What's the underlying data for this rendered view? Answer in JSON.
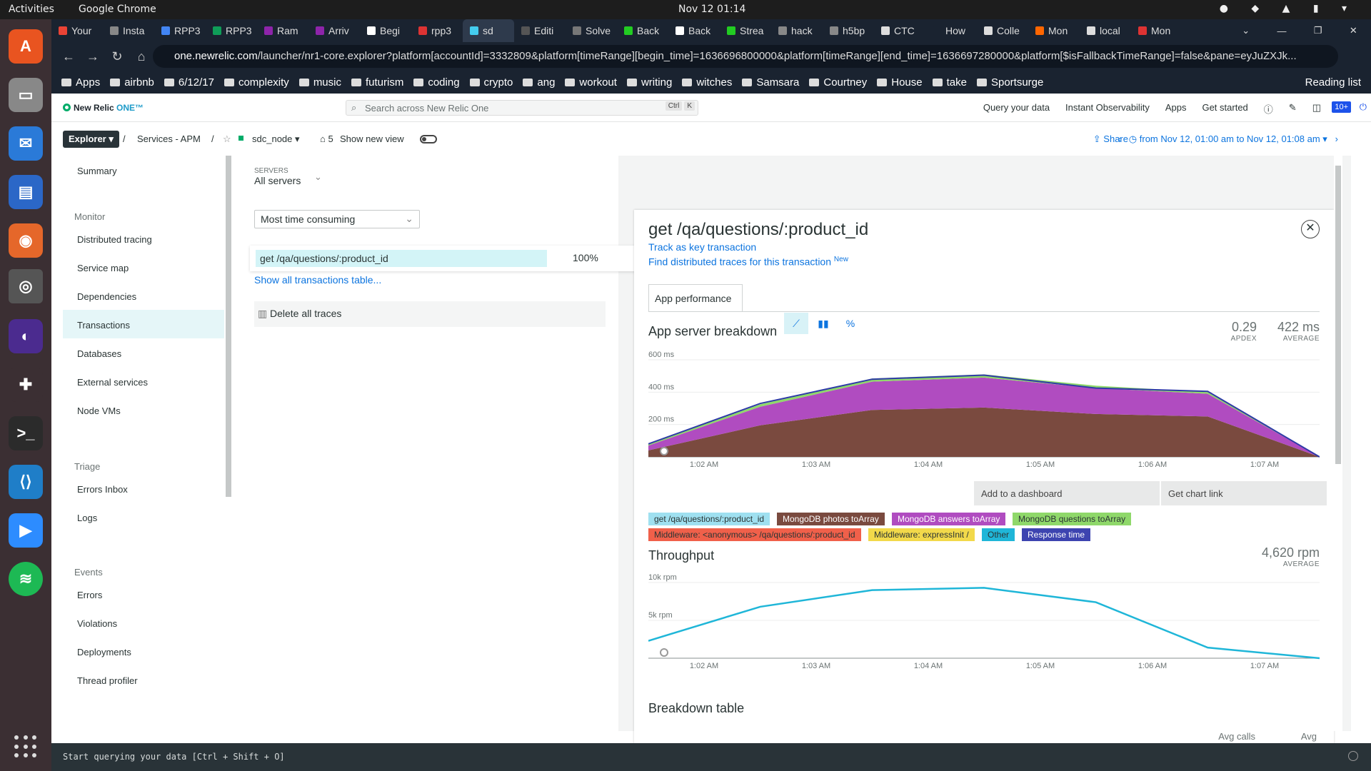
{
  "os": {
    "activities": "Activities",
    "browser_name": "Google Chrome",
    "clock": "Nov 12  01:14"
  },
  "browser": {
    "tabs": [
      "Your",
      "Insta",
      "RPP3",
      "RPP3",
      "Ram",
      "Arriv",
      "Begi",
      "rpp3",
      "sd",
      "Editi",
      "Solve",
      "Back",
      "Back",
      "Strea",
      "hack",
      "h5bp",
      "CTC",
      "How",
      "Colle",
      "Mon",
      "local",
      "Mon"
    ],
    "url_host": "one.newrelic.com",
    "url_path": "/launcher/nr1-core.explorer?platform[accountId]=3332809&platform[timeRange][begin_time]=1636696800000&platform[timeRange][end_time]=1636697280000&platform[$isFallbackTimeRange]=false&pane=eyJuZXJk...",
    "bookmarks": [
      "Apps",
      "airbnb",
      "6/12/17",
      "complexity",
      "music",
      "futurism",
      "coding",
      "crypto",
      "ang",
      "workout",
      "writing",
      "witches",
      "Samsara",
      "Courtney",
      "House",
      "take",
      "Sportsurge"
    ],
    "reading_list": "Reading list"
  },
  "nr": {
    "logo": "New Relic",
    "logo_one": "ONE™",
    "search_placeholder": "Search across New Relic One",
    "search_key1": "Ctrl",
    "search_key2": "K",
    "header_links": [
      "Query your data",
      "Instant Observability",
      "Apps",
      "Get started"
    ],
    "notif_badge": "10+",
    "explorer": "Explorer",
    "crumb_sep": "/",
    "crumb_services": "Services - APM",
    "entity": "sdc_node",
    "tags_count": "5",
    "show_new_view": "Show new view",
    "share": "Share",
    "time_range": "from Nov 12, 01:00 am to Nov 12, 01:08 am"
  },
  "sidebar": {
    "summary": "Summary",
    "monitor": "Monitor",
    "monitor_items": [
      "Distributed tracing",
      "Service map",
      "Dependencies",
      "Transactions",
      "Databases",
      "External services",
      "Node VMs"
    ],
    "triage": "Triage",
    "triage_items": [
      "Errors Inbox",
      "Logs"
    ],
    "events": "Events",
    "events_items": [
      "Errors",
      "Violations",
      "Deployments",
      "Thread profiler"
    ]
  },
  "left": {
    "servers_label": "SERVERS",
    "servers_value": "All servers",
    "sort": "Most time consuming",
    "tx_name": "get /qa/questions/:product_id",
    "tx_pct": "100%",
    "show_all": "Show all transactions table...",
    "delete": "Delete all traces"
  },
  "panel": {
    "title": "get /qa/questions/:product_id",
    "track": "Track as key transaction",
    "find": "Find distributed traces for this transaction",
    "new": "New",
    "tab": "App performance",
    "breakdown_title": "App server breakdown",
    "apdex_value": "0.29",
    "apdex_label": "APDEX",
    "avg_value": "422 ms",
    "avg_label": "AVERAGE",
    "add_dashboard": "Add to a dashboard",
    "chart_link": "Get chart link",
    "throughput_title": "Throughput",
    "throughput_value": "4,620 rpm",
    "throughput_label": "AVERAGE",
    "breakdown_table": "Breakdown table",
    "col_avg_calls": "Avg calls",
    "col_avg": "Avg",
    "icon_pct": "%"
  },
  "chart_data": [
    {
      "type": "area",
      "title": "App server breakdown",
      "x": [
        "1:01:30 AM",
        "1:02:30 AM",
        "1:03:30 AM",
        "1:04:30 AM",
        "1:05:30 AM",
        "1:06:30 AM",
        "1:07:30 AM"
      ],
      "xticks": [
        "1:02 AM",
        "1:03 AM",
        "1:04 AM",
        "1:05 AM",
        "1:06 AM",
        "1:07 AM"
      ],
      "yticks": [
        "600 ms",
        "400 ms",
        "200 ms"
      ],
      "ylim": [
        0,
        600
      ],
      "series": [
        {
          "name": "MongoDB photos toArray",
          "color": "#7a4a3f",
          "values": [
            40,
            195,
            290,
            305,
            265,
            250,
            0
          ]
        },
        {
          "name": "MongoDB answers toArray",
          "color": "#b04cc0",
          "values": [
            30,
            115,
            175,
            185,
            160,
            140,
            0
          ]
        },
        {
          "name": "MongoDB questions toArray",
          "color": "#8fd86a",
          "values": [
            10,
            15,
            20,
            20,
            15,
            10,
            0
          ]
        },
        {
          "name": "Response time",
          "color": "#2e3aa8",
          "values": [
            80,
            330,
            480,
            505,
            425,
            405,
            0
          ]
        }
      ],
      "legend": [
        {
          "label": "get /qa/questions/:product_id",
          "color": "#9fe0f0"
        },
        {
          "label": "MongoDB photos toArray",
          "color": "#7a4a3f"
        },
        {
          "label": "MongoDB answers toArray",
          "color": "#b04cc0"
        },
        {
          "label": "MongoDB questions toArray",
          "color": "#8fd86a"
        },
        {
          "label": "Middleware: <anonymous> /qa/questions/:product_id",
          "color": "#f0604a"
        },
        {
          "label": "Middleware: expressInit /",
          "color": "#f2d94a"
        },
        {
          "label": "Other",
          "color": "#1fb6d8"
        },
        {
          "label": "Response time",
          "color": "#3d44b0"
        }
      ]
    },
    {
      "type": "line",
      "title": "Throughput",
      "x": [
        "1:01:30 AM",
        "1:02:30 AM",
        "1:03:30 AM",
        "1:04:30 AM",
        "1:05:30 AM",
        "1:06:30 AM",
        "1:07:30 AM"
      ],
      "xticks": [
        "1:02 AM",
        "1:03 AM",
        "1:04 AM",
        "1:05 AM",
        "1:06 AM",
        "1:07 AM"
      ],
      "yticks": [
        "10k rpm",
        "5k rpm"
      ],
      "ylim": [
        0,
        10000
      ],
      "series": [
        {
          "name": "Throughput",
          "color": "#1fb6d8",
          "values": [
            2300,
            6800,
            9000,
            9300,
            7400,
            1400,
            0
          ]
        }
      ]
    }
  ]
}
